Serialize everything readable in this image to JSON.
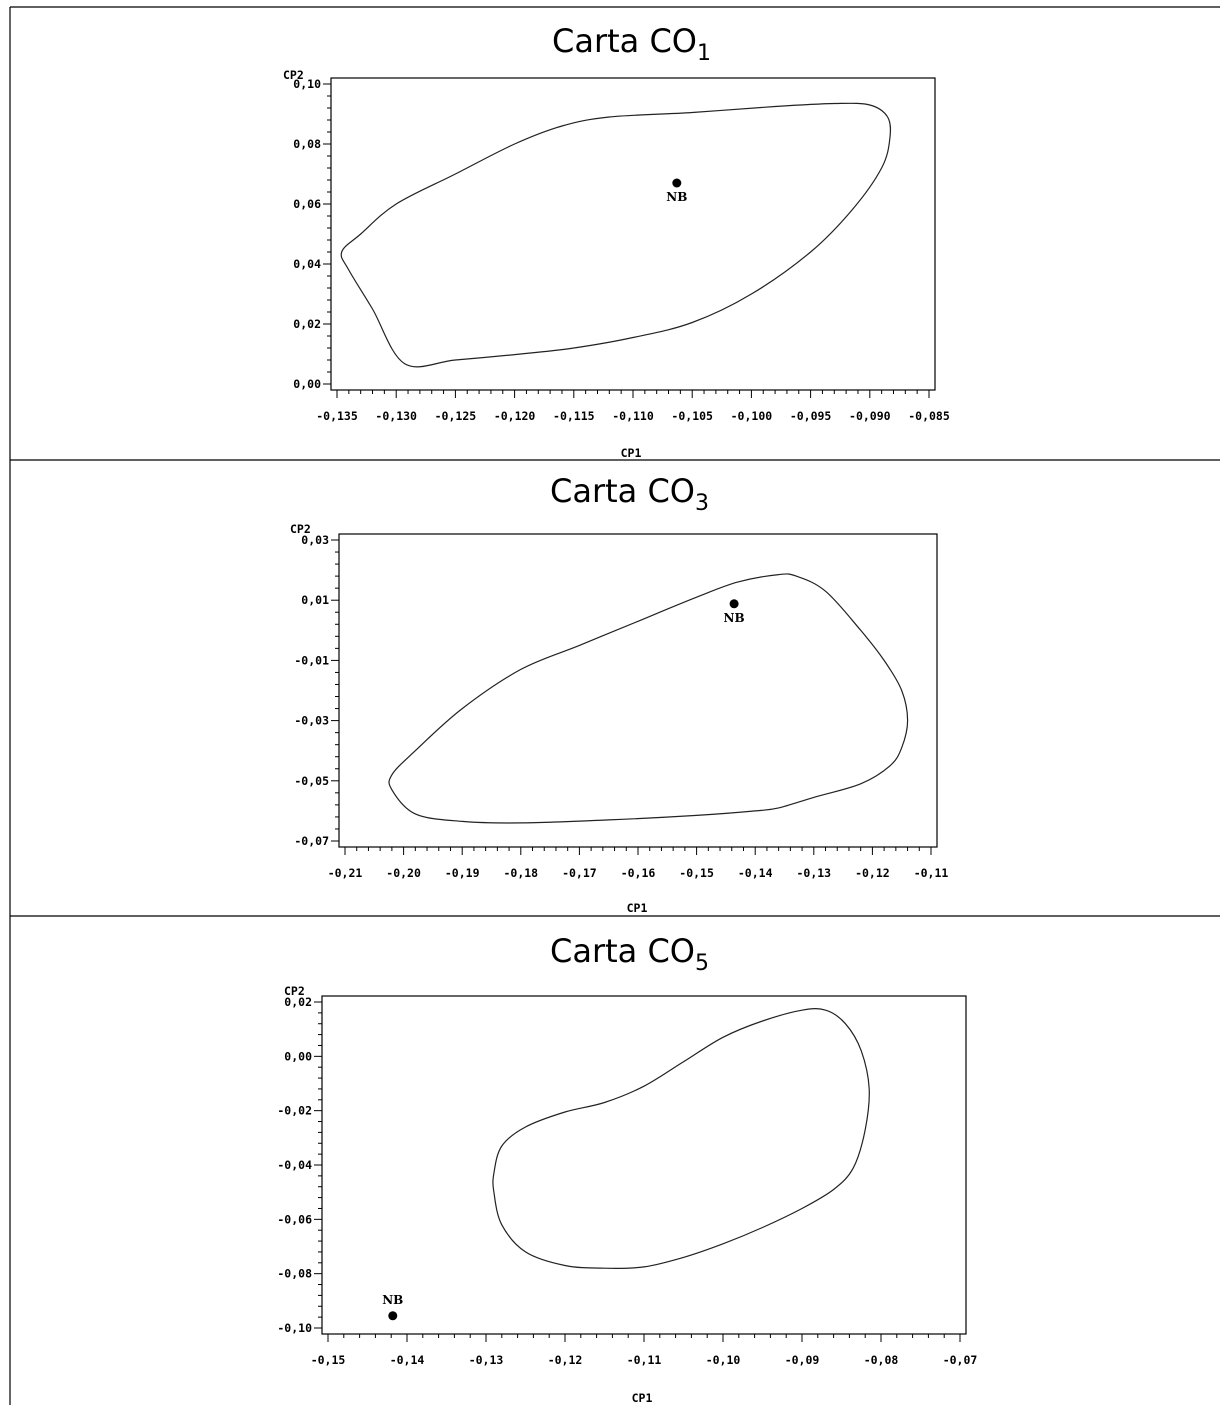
{
  "chart_data": [
    {
      "type": "scatter",
      "title": "Carta CO",
      "title_subscript": "1",
      "xlabel": "CP1",
      "ylabel": "CP2",
      "xlim": [
        -0.135,
        -0.085
      ],
      "ylim": [
        0.0,
        0.1
      ],
      "xticks": [
        "-0,135",
        "-0,130",
        "-0,125",
        "-0,120",
        "-0,115",
        "-0,110",
        "-0,105",
        "-0,100",
        "-0,095",
        "-0,090",
        "-0,085"
      ],
      "yticks": [
        "0,00",
        "0,02",
        "0,04",
        "0,06",
        "0,08",
        "0,10"
      ],
      "points": [
        {
          "label": "NB",
          "x": -0.1063,
          "y": 0.067
        }
      ],
      "region": [
        [
          -0.1293,
          0.0068
        ],
        [
          -0.125,
          0.008
        ],
        [
          -0.12,
          0.0098
        ],
        [
          -0.115,
          0.012
        ],
        [
          -0.11,
          0.0155
        ],
        [
          -0.105,
          0.0205
        ],
        [
          -0.1,
          0.03
        ],
        [
          -0.095,
          0.044
        ],
        [
          -0.0915,
          0.058
        ],
        [
          -0.089,
          0.072
        ],
        [
          -0.0883,
          0.082
        ],
        [
          -0.0885,
          0.089
        ],
        [
          -0.09,
          0.093
        ],
        [
          -0.093,
          0.0935
        ],
        [
          -0.098,
          0.0925
        ],
        [
          -0.105,
          0.0905
        ],
        [
          -0.112,
          0.089
        ],
        [
          -0.116,
          0.086
        ],
        [
          -0.12,
          0.08
        ],
        [
          -0.125,
          0.07
        ],
        [
          -0.13,
          0.06
        ],
        [
          -0.133,
          0.05
        ],
        [
          -0.1346,
          0.044
        ],
        [
          -0.134,
          0.038
        ],
        [
          -0.132,
          0.025
        ],
        [
          -0.1293,
          0.0068
        ]
      ]
    },
    {
      "type": "scatter",
      "title": "Carta CO",
      "title_subscript": "3",
      "xlabel": "CP1",
      "ylabel": "CP2",
      "xlim": [
        -0.21,
        -0.11
      ],
      "ylim": [
        -0.07,
        0.03
      ],
      "xticks": [
        "-0,21",
        "-0,20",
        "-0,19",
        "-0,18",
        "-0,17",
        "-0,16",
        "-0,15",
        "-0,14",
        "-0,13",
        "-0,12",
        "-0,11"
      ],
      "yticks": [
        "-0,07",
        "-0,05",
        "-0,03",
        "-0,01",
        "0,01",
        "0,03"
      ],
      "points": [
        {
          "label": "NB",
          "x": -0.1436,
          "y": 0.0088
        }
      ],
      "region": [
        [
          -0.202,
          -0.053
        ],
        [
          -0.198,
          -0.061
        ],
        [
          -0.19,
          -0.0635
        ],
        [
          -0.18,
          -0.064
        ],
        [
          -0.165,
          -0.063
        ],
        [
          -0.15,
          -0.0615
        ],
        [
          -0.14,
          -0.06
        ],
        [
          -0.136,
          -0.059
        ],
        [
          -0.13,
          -0.0555
        ],
        [
          -0.122,
          -0.051
        ],
        [
          -0.117,
          -0.045
        ],
        [
          -0.115,
          -0.039
        ],
        [
          -0.114,
          -0.03
        ],
        [
          -0.115,
          -0.02
        ],
        [
          -0.118,
          -0.01
        ],
        [
          -0.122,
          0.0
        ],
        [
          -0.128,
          0.013
        ],
        [
          -0.133,
          0.018
        ],
        [
          -0.136,
          0.0185
        ],
        [
          -0.143,
          0.016
        ],
        [
          -0.15,
          0.011
        ],
        [
          -0.16,
          0.003
        ],
        [
          -0.17,
          -0.005
        ],
        [
          -0.18,
          -0.013
        ],
        [
          -0.19,
          -0.026
        ],
        [
          -0.198,
          -0.04
        ],
        [
          -0.202,
          -0.048
        ],
        [
          -0.202,
          -0.053
        ]
      ]
    },
    {
      "type": "scatter",
      "title": "Carta CO",
      "title_subscript": "5",
      "xlabel": "CP1",
      "ylabel": "CP2",
      "xlim": [
        -0.15,
        -0.07
      ],
      "ylim": [
        -0.1,
        0.02
      ],
      "xticks": [
        "-0,15",
        "-0,14",
        "-0,13",
        "-0,12",
        "-0,11",
        "-0,10",
        "-0,09",
        "-0,08",
        "-0,07"
      ],
      "yticks": [
        "-0,10",
        "-0,08",
        "-0,06",
        "-0,04",
        "-0,02",
        "0,00",
        "0,02"
      ],
      "points": [
        {
          "label": "NB",
          "x": -0.1418,
          "y": -0.0955
        }
      ],
      "region": [
        [
          -0.129,
          -0.05
        ],
        [
          -0.128,
          -0.062
        ],
        [
          -0.125,
          -0.072
        ],
        [
          -0.12,
          -0.077
        ],
        [
          -0.115,
          -0.078
        ],
        [
          -0.11,
          -0.0775
        ],
        [
          -0.105,
          -0.074
        ],
        [
          -0.1,
          -0.069
        ],
        [
          -0.095,
          -0.063
        ],
        [
          -0.09,
          -0.056
        ],
        [
          -0.086,
          -0.049
        ],
        [
          -0.0835,
          -0.041
        ],
        [
          -0.082,
          -0.027
        ],
        [
          -0.0815,
          -0.012
        ],
        [
          -0.0825,
          0.002
        ],
        [
          -0.0845,
          0.012
        ],
        [
          -0.087,
          0.017
        ],
        [
          -0.09,
          0.017
        ],
        [
          -0.095,
          0.013
        ],
        [
          -0.1,
          0.007
        ],
        [
          -0.105,
          -0.002
        ],
        [
          -0.11,
          -0.011
        ],
        [
          -0.115,
          -0.017
        ],
        [
          -0.12,
          -0.0205
        ],
        [
          -0.125,
          -0.026
        ],
        [
          -0.128,
          -0.033
        ],
        [
          -0.129,
          -0.043
        ],
        [
          -0.129,
          -0.05
        ]
      ]
    }
  ]
}
